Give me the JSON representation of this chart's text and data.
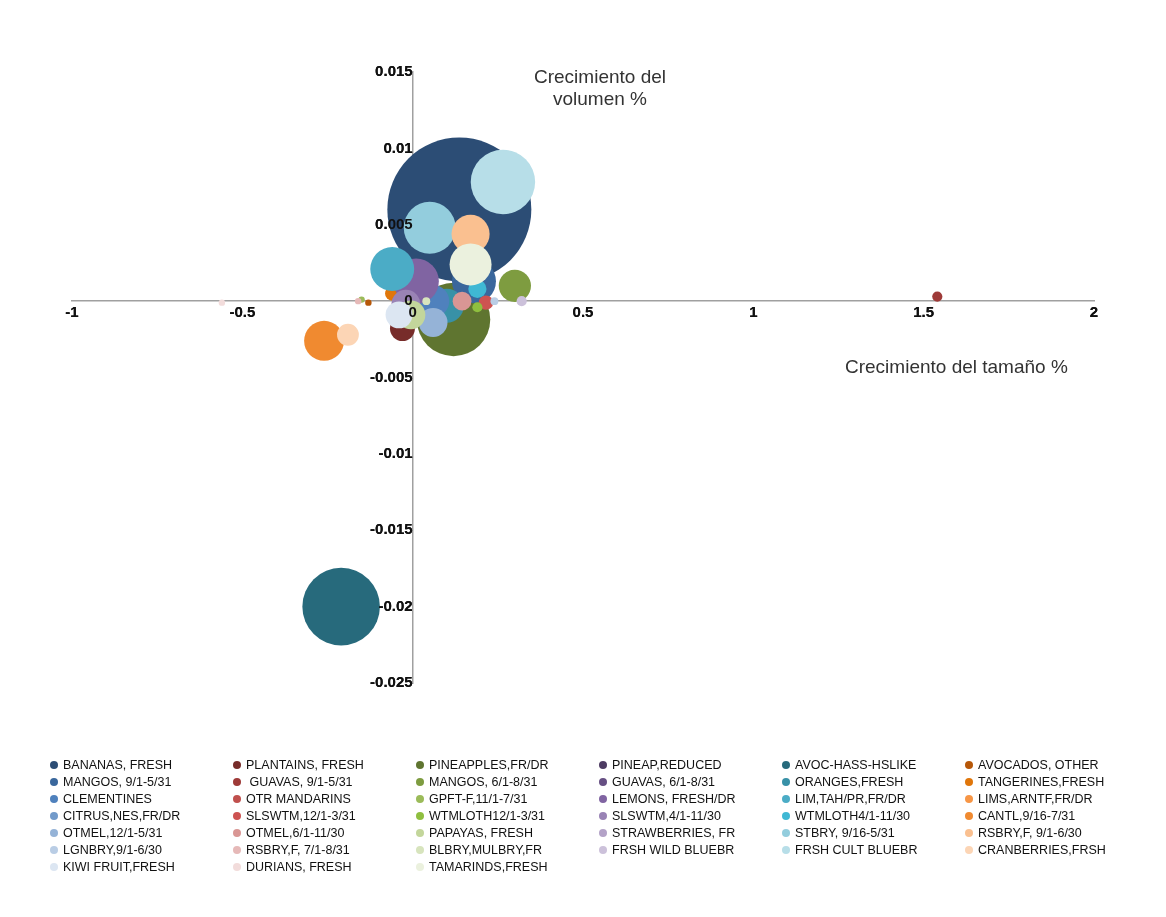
{
  "chart_data": {
    "type": "bubble",
    "xlabel": "Crecimiento del tamaño %",
    "ylabel": "Crecimiento del volumen  %",
    "xlim": [
      -1,
      2
    ],
    "xticks": [
      -1,
      -0.5,
      0,
      0.5,
      1,
      1.5,
      2
    ],
    "ylim": [
      -0.025,
      0.015
    ],
    "yticks": [
      -0.025,
      -0.02,
      -0.015,
      -0.01,
      -0.005,
      0,
      0.005,
      0.01,
      0.015
    ],
    "grid": false,
    "legend": "bottom",
    "series": [
      {
        "name": "BANANAS, FRESH",
        "color": "#2c4d75",
        "x": [
          0.137
        ],
        "values": [
          0.006
        ],
        "sizes": [
          1
        ]
      },
      {
        "name": "PLANTAINS, FRESH",
        "color": "#772c2a",
        "x": [
          -0.03
        ],
        "values": [
          -0.0018
        ],
        "sizes": [
          0.03
        ]
      },
      {
        "name": "PINEAPPLES,FR/DR",
        "color": "#5f7530",
        "x": [
          0.12
        ],
        "values": [
          -0.0012
        ],
        "sizes": [
          0.26
        ]
      },
      {
        "name": "PINEAP,REDUCED",
        "color": "#4d3b62",
        "x": [
          null
        ],
        "values": [
          null
        ],
        "sizes": [
          null
        ]
      },
      {
        "name": "AVOC-HASS-HSLIKE",
        "color": "#276a7c",
        "x": [
          -0.21
        ],
        "values": [
          -0.02
        ],
        "sizes": [
          0.29
        ]
      },
      {
        "name": "AVOCADOS, OTHER",
        "color": "#b65708",
        "x": [
          -0.13
        ],
        "values": [
          -0.0001
        ],
        "sizes": [
          0.002
        ]
      },
      {
        "name": "MANGOS, 9/1-5/31",
        "color": "#3a679c",
        "x": [
          0.18
        ],
        "values": [
          0.0013
        ],
        "sizes": [
          0.093
        ]
      },
      {
        "name": " GUAVAS, 9/1-5/31",
        "color": "#9e3a38",
        "x": [
          1.54
        ],
        "values": [
          0.0003
        ],
        "sizes": [
          0.005
        ]
      },
      {
        "name": "MANGOS, 6/1-8/31",
        "color": "#7e9c40",
        "x": [
          0.3
        ],
        "values": [
          0.001
        ],
        "sizes": [
          0.05
        ]
      },
      {
        "name": "GUAVAS, 6/1-8/31",
        "color": "#664f83",
        "x": [
          null
        ],
        "values": [
          null
        ],
        "sizes": [
          null
        ]
      },
      {
        "name": "ORANGES,FRESH",
        "color": "#3891a7",
        "x": [
          0.1
        ],
        "values": [
          -0.0003
        ],
        "sizes": [
          0.056
        ]
      },
      {
        "name": "TANGERINES,FRESH",
        "color": "#e0760a",
        "x": [
          -0.06
        ],
        "values": [
          0.0005
        ],
        "sizes": [
          0.01
        ]
      },
      {
        "name": "CLEMENTINES",
        "color": "#4f81bd",
        "x": [
          0.06
        ],
        "values": [
          0
        ],
        "sizes": [
          0.05
        ]
      },
      {
        "name": "OTR MANDARINS",
        "color": "#c0504d",
        "x": [
          null
        ],
        "values": [
          null
        ],
        "sizes": [
          null
        ]
      },
      {
        "name": "GPFT-F,11/1-7/31",
        "color": "#9bbb59",
        "x": [
          -0.15
        ],
        "values": [
          0.0001
        ],
        "sizes": [
          0.002
        ]
      },
      {
        "name": "LEMONS, FRESH/DR",
        "color": "#8064a2",
        "x": [
          0.01
        ],
        "values": [
          0.0013
        ],
        "sizes": [
          0.1
        ]
      },
      {
        "name": "LIM,TAH/PR,FR/DR",
        "color": "#4bacc6",
        "x": [
          -0.06
        ],
        "values": [
          0.0021
        ],
        "sizes": [
          0.093
        ]
      },
      {
        "name": "LIMS,ARNTF,FR/DR",
        "color": "#f79646",
        "x": [
          null
        ],
        "values": [
          null
        ],
        "sizes": [
          null
        ]
      },
      {
        "name": "CITRUS,NES,FR/DR",
        "color": "#729aca",
        "x": [
          null
        ],
        "values": [
          null
        ],
        "sizes": [
          null
        ]
      },
      {
        "name": "SLSWTM,12/1-3/31",
        "color": "#cd5351",
        "x": [
          0.215
        ],
        "values": [
          -0.0001
        ],
        "sizes": [
          0.01
        ]
      },
      {
        "name": "WTMLOTH12/1-3/31",
        "color": "#8fbf3f",
        "x": [
          0.19
        ],
        "values": [
          -0.0004
        ],
        "sizes": [
          0.005
        ]
      },
      {
        "name": "SLSWTM,4/1-11/30",
        "color": "#9983b5",
        "x": [
          -0.02
        ],
        "values": [
          -0.0002
        ],
        "sizes": [
          0.04
        ]
      },
      {
        "name": "WTMLOTH4/1-11/30",
        "color": "#3fb8d4",
        "x": [
          0.19
        ],
        "values": [
          0.0008
        ],
        "sizes": [
          0.016
        ]
      },
      {
        "name": "CANTL,9/16-7/31",
        "color": "#f08a30",
        "x": [
          -0.26
        ],
        "values": [
          -0.0026
        ],
        "sizes": [
          0.077
        ]
      },
      {
        "name": "OTMEL,12/1-5/31",
        "color": "#95b3d7",
        "x": [
          0.06
        ],
        "values": [
          -0.0014
        ],
        "sizes": [
          0.04
        ]
      },
      {
        "name": "OTMEL,6/1-11/30",
        "color": "#d99694",
        "x": [
          0.145
        ],
        "values": [
          0
        ],
        "sizes": [
          0.017
        ]
      },
      {
        "name": "PAPAYAS, FRESH",
        "color": "#c3d69b",
        "x": [
          -0.005
        ],
        "values": [
          -0.0009
        ],
        "sizes": [
          0.04
        ]
      },
      {
        "name": "STRAWBERRIES, FR",
        "color": "#b3a2c7",
        "x": [
          null
        ],
        "values": [
          null
        ],
        "sizes": [
          null
        ]
      },
      {
        "name": "STBRY, 9/16-5/31",
        "color": "#93cddd",
        "x": [
          0.05
        ],
        "values": [
          0.0048
        ],
        "sizes": [
          0.13
        ]
      },
      {
        "name": "RSBRY,F, 9/1-6/30",
        "color": "#fac090",
        "x": [
          0.17
        ],
        "values": [
          0.0044
        ],
        "sizes": [
          0.07
        ]
      },
      {
        "name": "LGNBRY,9/1-6/30",
        "color": "#b9cde5",
        "x": [
          0.24
        ],
        "values": [
          0
        ],
        "sizes": [
          0.003
        ]
      },
      {
        "name": "RSBRY,F, 7/1-8/31",
        "color": "#e6b9b8",
        "x": [
          -0.16
        ],
        "values": [
          0
        ],
        "sizes": [
          0.002
        ]
      },
      {
        "name": "BLBRY,MULBRY,FR",
        "color": "#d7e4bd",
        "x": [
          0.04
        ],
        "values": [
          0
        ],
        "sizes": [
          0.003
        ]
      },
      {
        "name": "FRSH WILD BLUEBR",
        "color": "#ccc1da",
        "x": [
          0.32
        ],
        "values": [
          0
        ],
        "sizes": [
          0.005
        ]
      },
      {
        "name": "FRSH CULT BLUEBR",
        "color": "#b7dee8",
        "x": [
          0.265
        ],
        "values": [
          0.0078
        ],
        "sizes": [
          0.2
        ]
      },
      {
        "name": "CRANBERRIES,FRSH",
        "color": "#fcd5b5",
        "x": [
          -0.19
        ],
        "values": [
          -0.0022
        ],
        "sizes": [
          0.023
        ]
      },
      {
        "name": "KIWI FRUIT,FRESH",
        "color": "#dce6f2",
        "x": [
          -0.04
        ],
        "values": [
          -0.0009
        ],
        "sizes": [
          0.035
        ]
      },
      {
        "name": "DURIANS, FRESH",
        "color": "#f2dcdb",
        "x": [
          -0.56
        ],
        "values": [
          -0.0001
        ],
        "sizes": [
          0.002
        ]
      },
      {
        "name": "TAMARINDS,FRESH",
        "color": "#ebf1de",
        "x": [
          0.17
        ],
        "values": [
          0.0024
        ],
        "sizes": [
          0.085
        ]
      }
    ]
  }
}
